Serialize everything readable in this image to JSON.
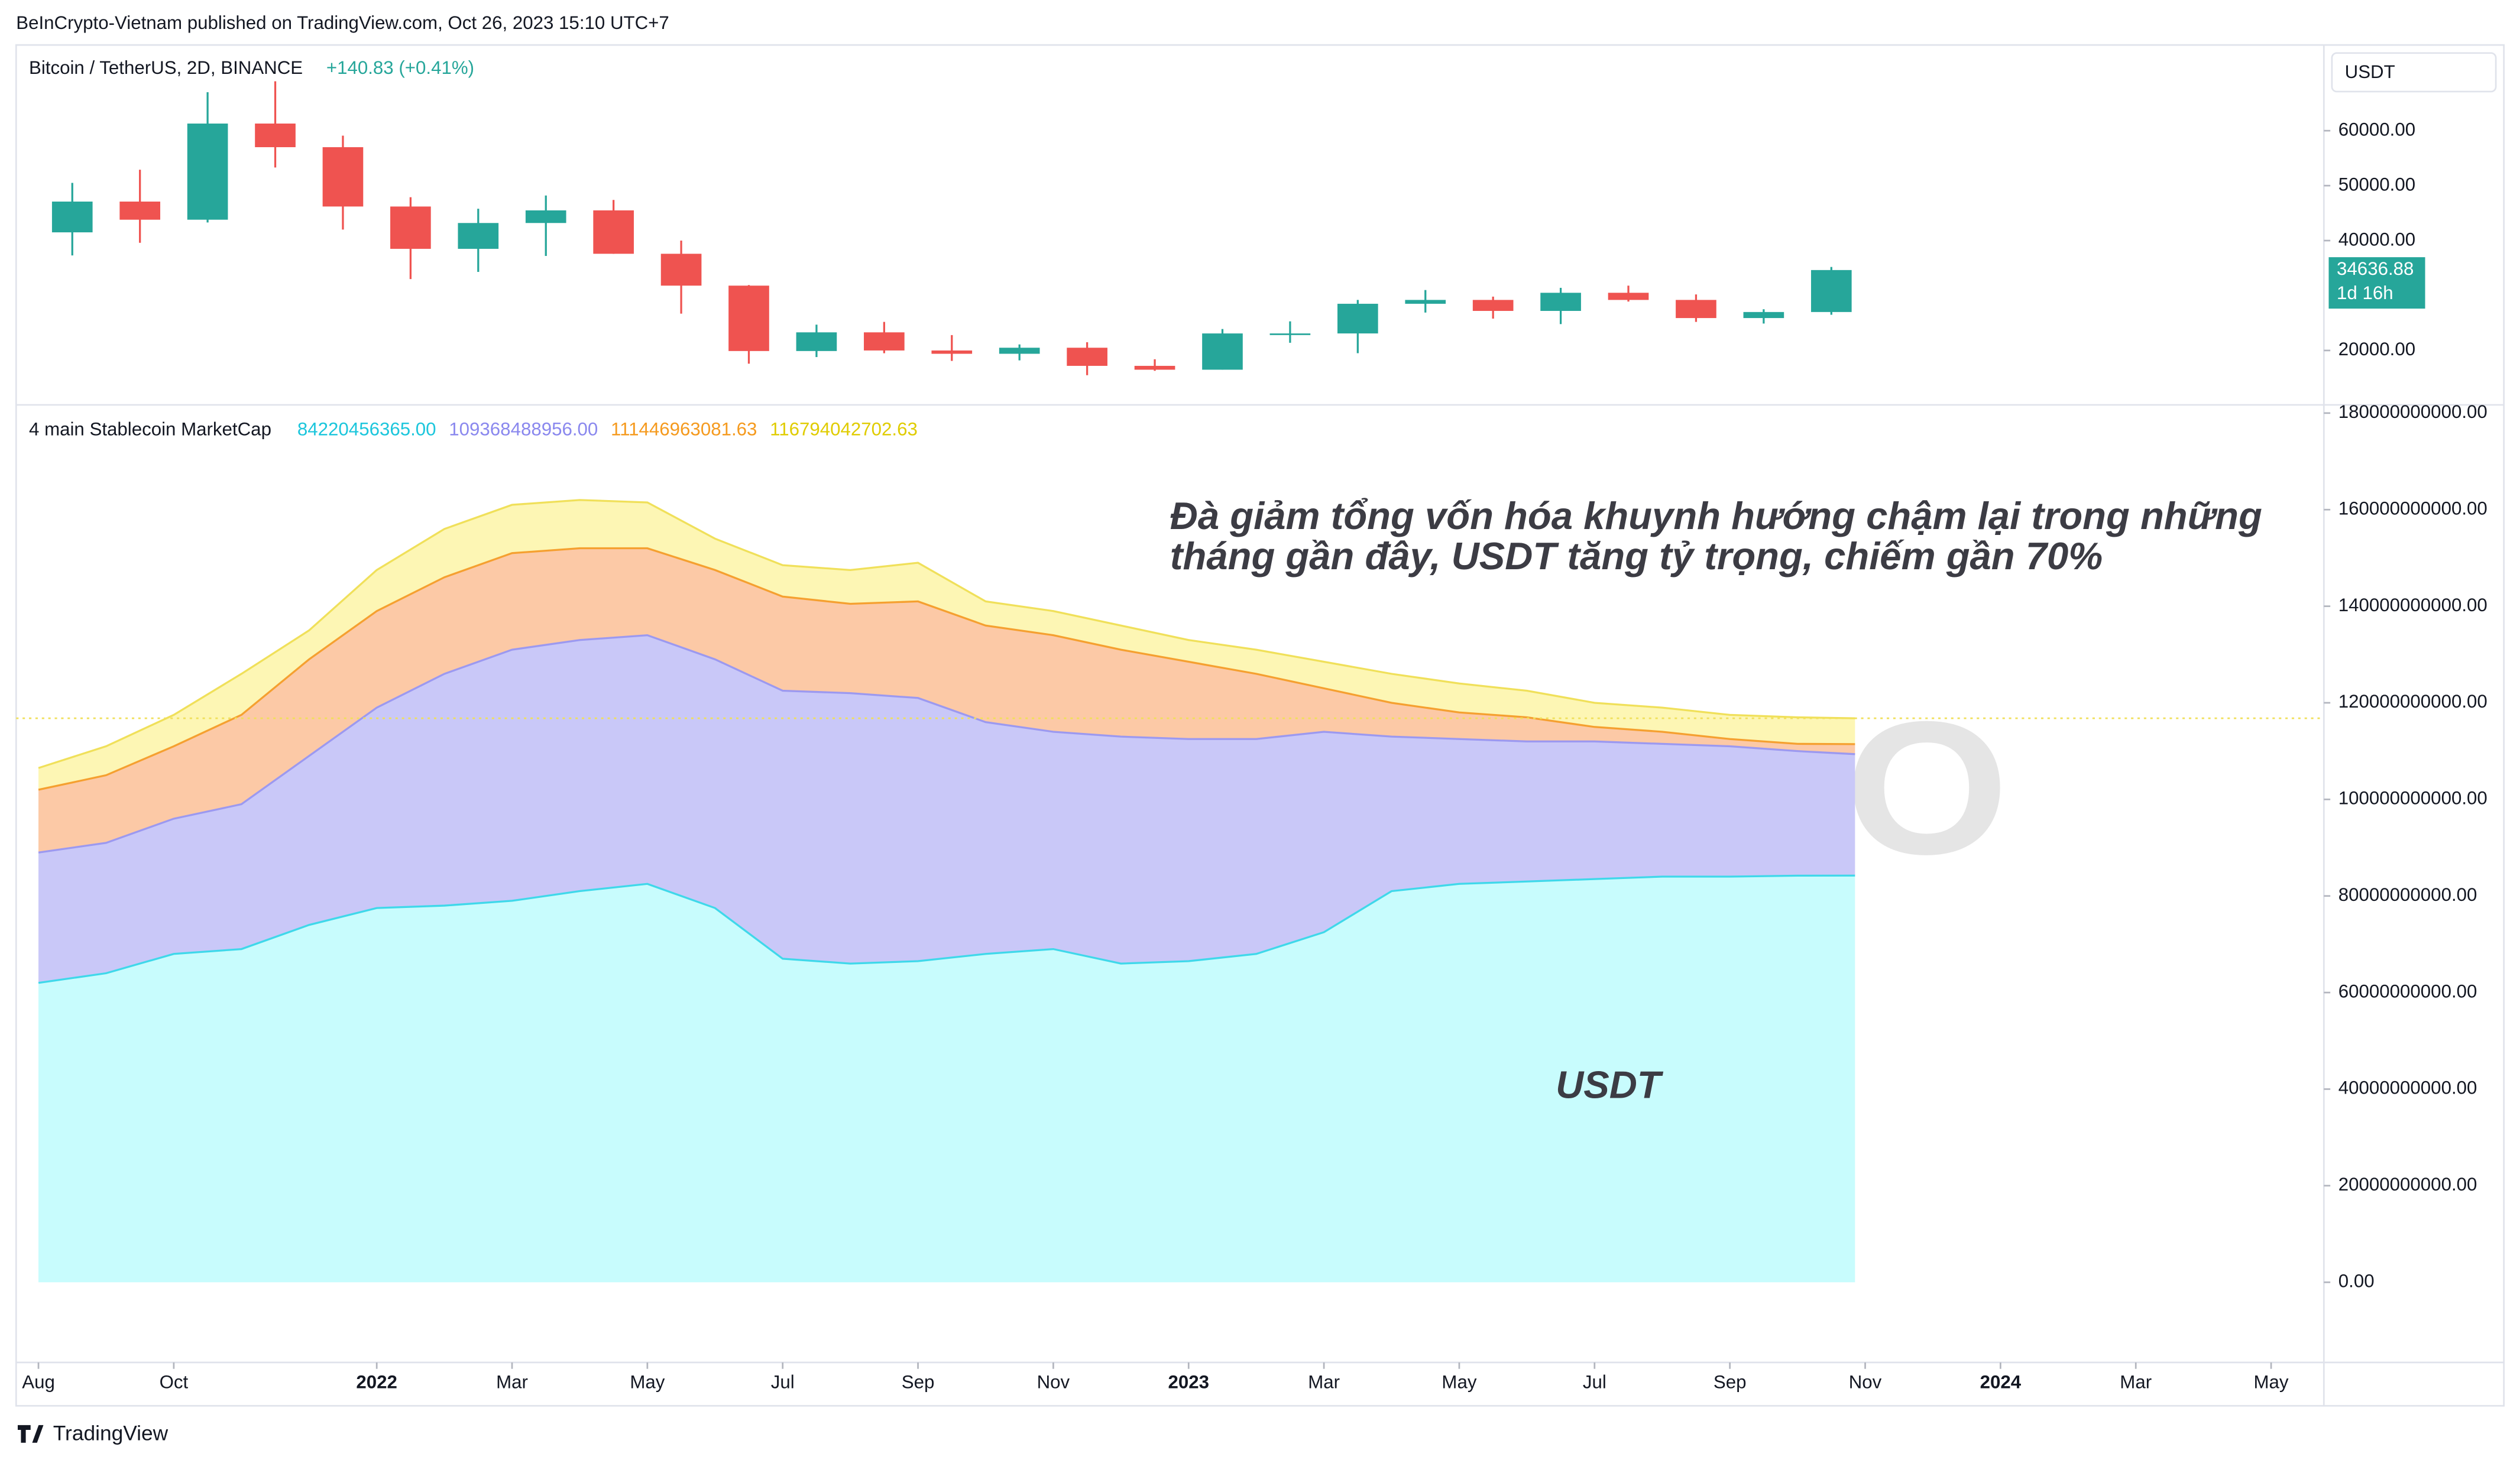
{
  "header": {
    "published": "BeInCrypto-Vietnam published on TradingView.com, Oct 26, 2023 15:10 UTC+7"
  },
  "footer": {
    "brand": "TradingView"
  },
  "chart_data": [
    {
      "type": "candlestick",
      "title": "Bitcoin / TetherUS, 2D, BINANCE",
      "change": "+140.83 (+0.41%)",
      "currency": "USDT",
      "countdown": "1d 16h",
      "up_color": "#26a69a",
      "down_color": "#ef5350",
      "x": [
        0.5,
        1.5,
        2.5,
        3.5,
        4.5,
        5.5,
        6.5,
        7.5,
        8.5,
        9.5,
        10.5,
        11.5,
        12.5,
        13.5,
        14.5,
        15.5,
        16.5,
        17.5,
        18.5,
        19.5,
        20.5,
        21.5,
        22.5,
        23.5,
        24.5,
        25.5,
        26.5
      ],
      "open": [
        41500,
        47100,
        43800,
        61300,
        57000,
        46200,
        38500,
        43200,
        45500,
        37600,
        31800,
        19900,
        23300,
        20000,
        19400,
        20500,
        17200,
        16500,
        23100,
        23100,
        28500,
        29200,
        27200,
        30500,
        29200,
        25900,
        27000
      ],
      "high": [
        50500,
        52900,
        67000,
        69000,
        59100,
        47900,
        45800,
        48200,
        47400,
        40000,
        31900,
        24700,
        25200,
        22800,
        21100,
        21500,
        18400,
        23900,
        25300,
        29200,
        31000,
        29800,
        31400,
        31800,
        30200,
        27500,
        35200
      ],
      "low": [
        37300,
        39600,
        43300,
        53300,
        42000,
        33000,
        34300,
        37200,
        37600,
        26700,
        17600,
        18800,
        19500,
        18100,
        18200,
        15500,
        16300,
        16500,
        21400,
        19500,
        26900,
        25800,
        24800,
        28900,
        25200,
        24900,
        26500
      ],
      "close": [
        47100,
        43800,
        61300,
        57000,
        46200,
        38500,
        43200,
        45500,
        37600,
        31800,
        19900,
        23300,
        20000,
        19400,
        20500,
        17200,
        16500,
        23100,
        23100,
        28500,
        29200,
        27200,
        30500,
        29200,
        25900,
        27000,
        34636.88
      ],
      "price_label": "34636.88",
      "xlim": [
        -0.33,
        33.78
      ],
      "ylim": [
        10100,
        75600
      ],
      "yticks": [
        {
          "value": 20000,
          "label": "20000.00"
        },
        {
          "value": 40000,
          "label": "40000.00"
        },
        {
          "value": 50000,
          "label": "50000.00"
        },
        {
          "value": 60000,
          "label": "60000.00"
        }
      ]
    },
    {
      "type": "area",
      "stacked": true,
      "title": "4 main Stablecoin MarketCap",
      "legend_values": [
        {
          "label": "84220456365.00",
          "color": "#1cc6dc"
        },
        {
          "label": "109368488956.00",
          "color": "#8a88ee"
        },
        {
          "label": "111446963081.63",
          "color": "#f59a1e"
        },
        {
          "label": "116794042702.63",
          "color": "#e0cc00"
        }
      ],
      "annotation": [
        "Đà giảm tổng vốn hóa khuynh hướng chậm lại trong những",
        "tháng gần đây, USDT tăng tỷ trọng, chiếm gần 70%"
      ],
      "usdt_label": "USDT",
      "watermark": "BE[in]CRYPTO",
      "x": [
        0,
        1,
        2,
        3,
        4,
        5,
        6,
        7,
        8,
        9,
        10,
        11,
        12,
        13,
        14,
        15,
        16,
        17,
        18,
        19,
        20,
        21,
        22,
        23,
        24,
        25,
        26,
        26.85
      ],
      "series": [
        {
          "color": "#c8fcfd",
          "line_color": "#3fd8ea",
          "values": [
            62000000000.0,
            64000000000.0,
            68000000000.0,
            69000000000.0,
            74000000000.0,
            77500000000.0,
            78000000000.0,
            79000000000.0,
            81000000000.0,
            82500000000.0,
            77500000000.0,
            67000000000.0,
            66000000000.0,
            66500000000.0,
            68000000000.0,
            69000000000.0,
            66000000000.0,
            66500000000.0,
            68000000000.0,
            72500000000.0,
            81000000000.0,
            82500000000.0,
            83000000000.0,
            83500000000.0,
            84000000000.0,
            84000000000.0,
            84200000000.0,
            84220456365
          ]
        },
        {
          "color": "#c9c8f8",
          "line_color": "#9c99f0",
          "values": [
            27000000000.0,
            27000000000.0,
            28000000000.0,
            30000000000.0,
            35000000000.0,
            41500000000.0,
            48000000000.0,
            52000000000.0,
            52000000000.0,
            51500000000.0,
            51500000000.0,
            55500000000.0,
            56000000000.0,
            54500000000.0,
            48000000000.0,
            45000000000.0,
            47000000000.0,
            46000000000.0,
            44500000000.0,
            41500000000.0,
            32000000000.0,
            30000000000.0,
            29000000000.0,
            28500000000.0,
            27500000000.0,
            27000000000.0,
            25800000000.0,
            25148032591
          ]
        },
        {
          "color": "#fcc9a6",
          "line_color": "#f5a030",
          "values": [
            13000000000.0,
            14000000000.0,
            15000000000.0,
            18500000000.0,
            20000000000.0,
            20000000000.0,
            20000000000.0,
            20000000000.0,
            19000000000.0,
            18000000000.0,
            18500000000.0,
            19500000000.0,
            18500000000.0,
            20000000000.0,
            20000000000.0,
            20000000000.0,
            18000000000.0,
            16000000000.0,
            13500000000.0,
            9000000000.0,
            7000000000.0,
            5500000000.0,
            5000000000.0,
            3000000000.0,
            2500000000.0,
            1500000000.0,
            1500000000.0,
            2078474125.63
          ]
        },
        {
          "color": "#fdf6b4",
          "line_color": "#f0e05a",
          "values": [
            4500000000.0,
            6000000000.0,
            6500000000.0,
            8500000000.0,
            6000000000.0,
            8500000000.0,
            10000000000.0,
            10000000000.0,
            10000000000.0,
            9500000000.0,
            6500000000.0,
            6500000000.0,
            7000000000.0,
            8000000000.0,
            5000000000.0,
            5000000000.0,
            5000000000.0,
            4500000000.0,
            5000000000.0,
            5500000000.0,
            6000000000.0,
            6000000000.0,
            5500000000.0,
            5000000000.0,
            5000000000.0,
            5000000000.0,
            5500000000.0,
            5347079621
          ]
        }
      ],
      "xlim": [
        -0.33,
        33.78
      ],
      "ylim": [
        -16600000000.0,
        181700000000.0
      ],
      "xticks": [
        {
          "value": 0,
          "label": "Aug"
        },
        {
          "value": 2,
          "label": "Oct"
        },
        {
          "value": 5,
          "label": "2022"
        },
        {
          "value": 7,
          "label": "Mar"
        },
        {
          "value": 9,
          "label": "May"
        },
        {
          "value": 11,
          "label": "Jul"
        },
        {
          "value": 13,
          "label": "Sep"
        },
        {
          "value": 15,
          "label": "Nov"
        },
        {
          "value": 17,
          "label": "2023"
        },
        {
          "value": 19,
          "label": "Mar"
        },
        {
          "value": 21,
          "label": "May"
        },
        {
          "value": 23,
          "label": "Jul"
        },
        {
          "value": 25,
          "label": "Sep"
        },
        {
          "value": 27,
          "label": "Nov"
        },
        {
          "value": 29,
          "label": "2024"
        },
        {
          "value": 31,
          "label": "Mar"
        },
        {
          "value": 33,
          "label": "May"
        }
      ],
      "yticks": [
        {
          "value": 0,
          "label": "0.00"
        },
        {
          "value": 20000000000.0,
          "label": "20000000000.00"
        },
        {
          "value": 40000000000.0,
          "label": "40000000000.00"
        },
        {
          "value": 60000000000.0,
          "label": "60000000000.00"
        },
        {
          "value": 80000000000.0,
          "label": "80000000000.00"
        },
        {
          "value": 100000000000.0,
          "label": "100000000000.00"
        },
        {
          "value": 120000000000.0,
          "label": "120000000000.00"
        },
        {
          "value": 140000000000.0,
          "label": "140000000000.00"
        },
        {
          "value": 160000000000.0,
          "label": "160000000000.00"
        },
        {
          "value": 180000000000.0,
          "label": "180000000000.00"
        }
      ]
    }
  ]
}
